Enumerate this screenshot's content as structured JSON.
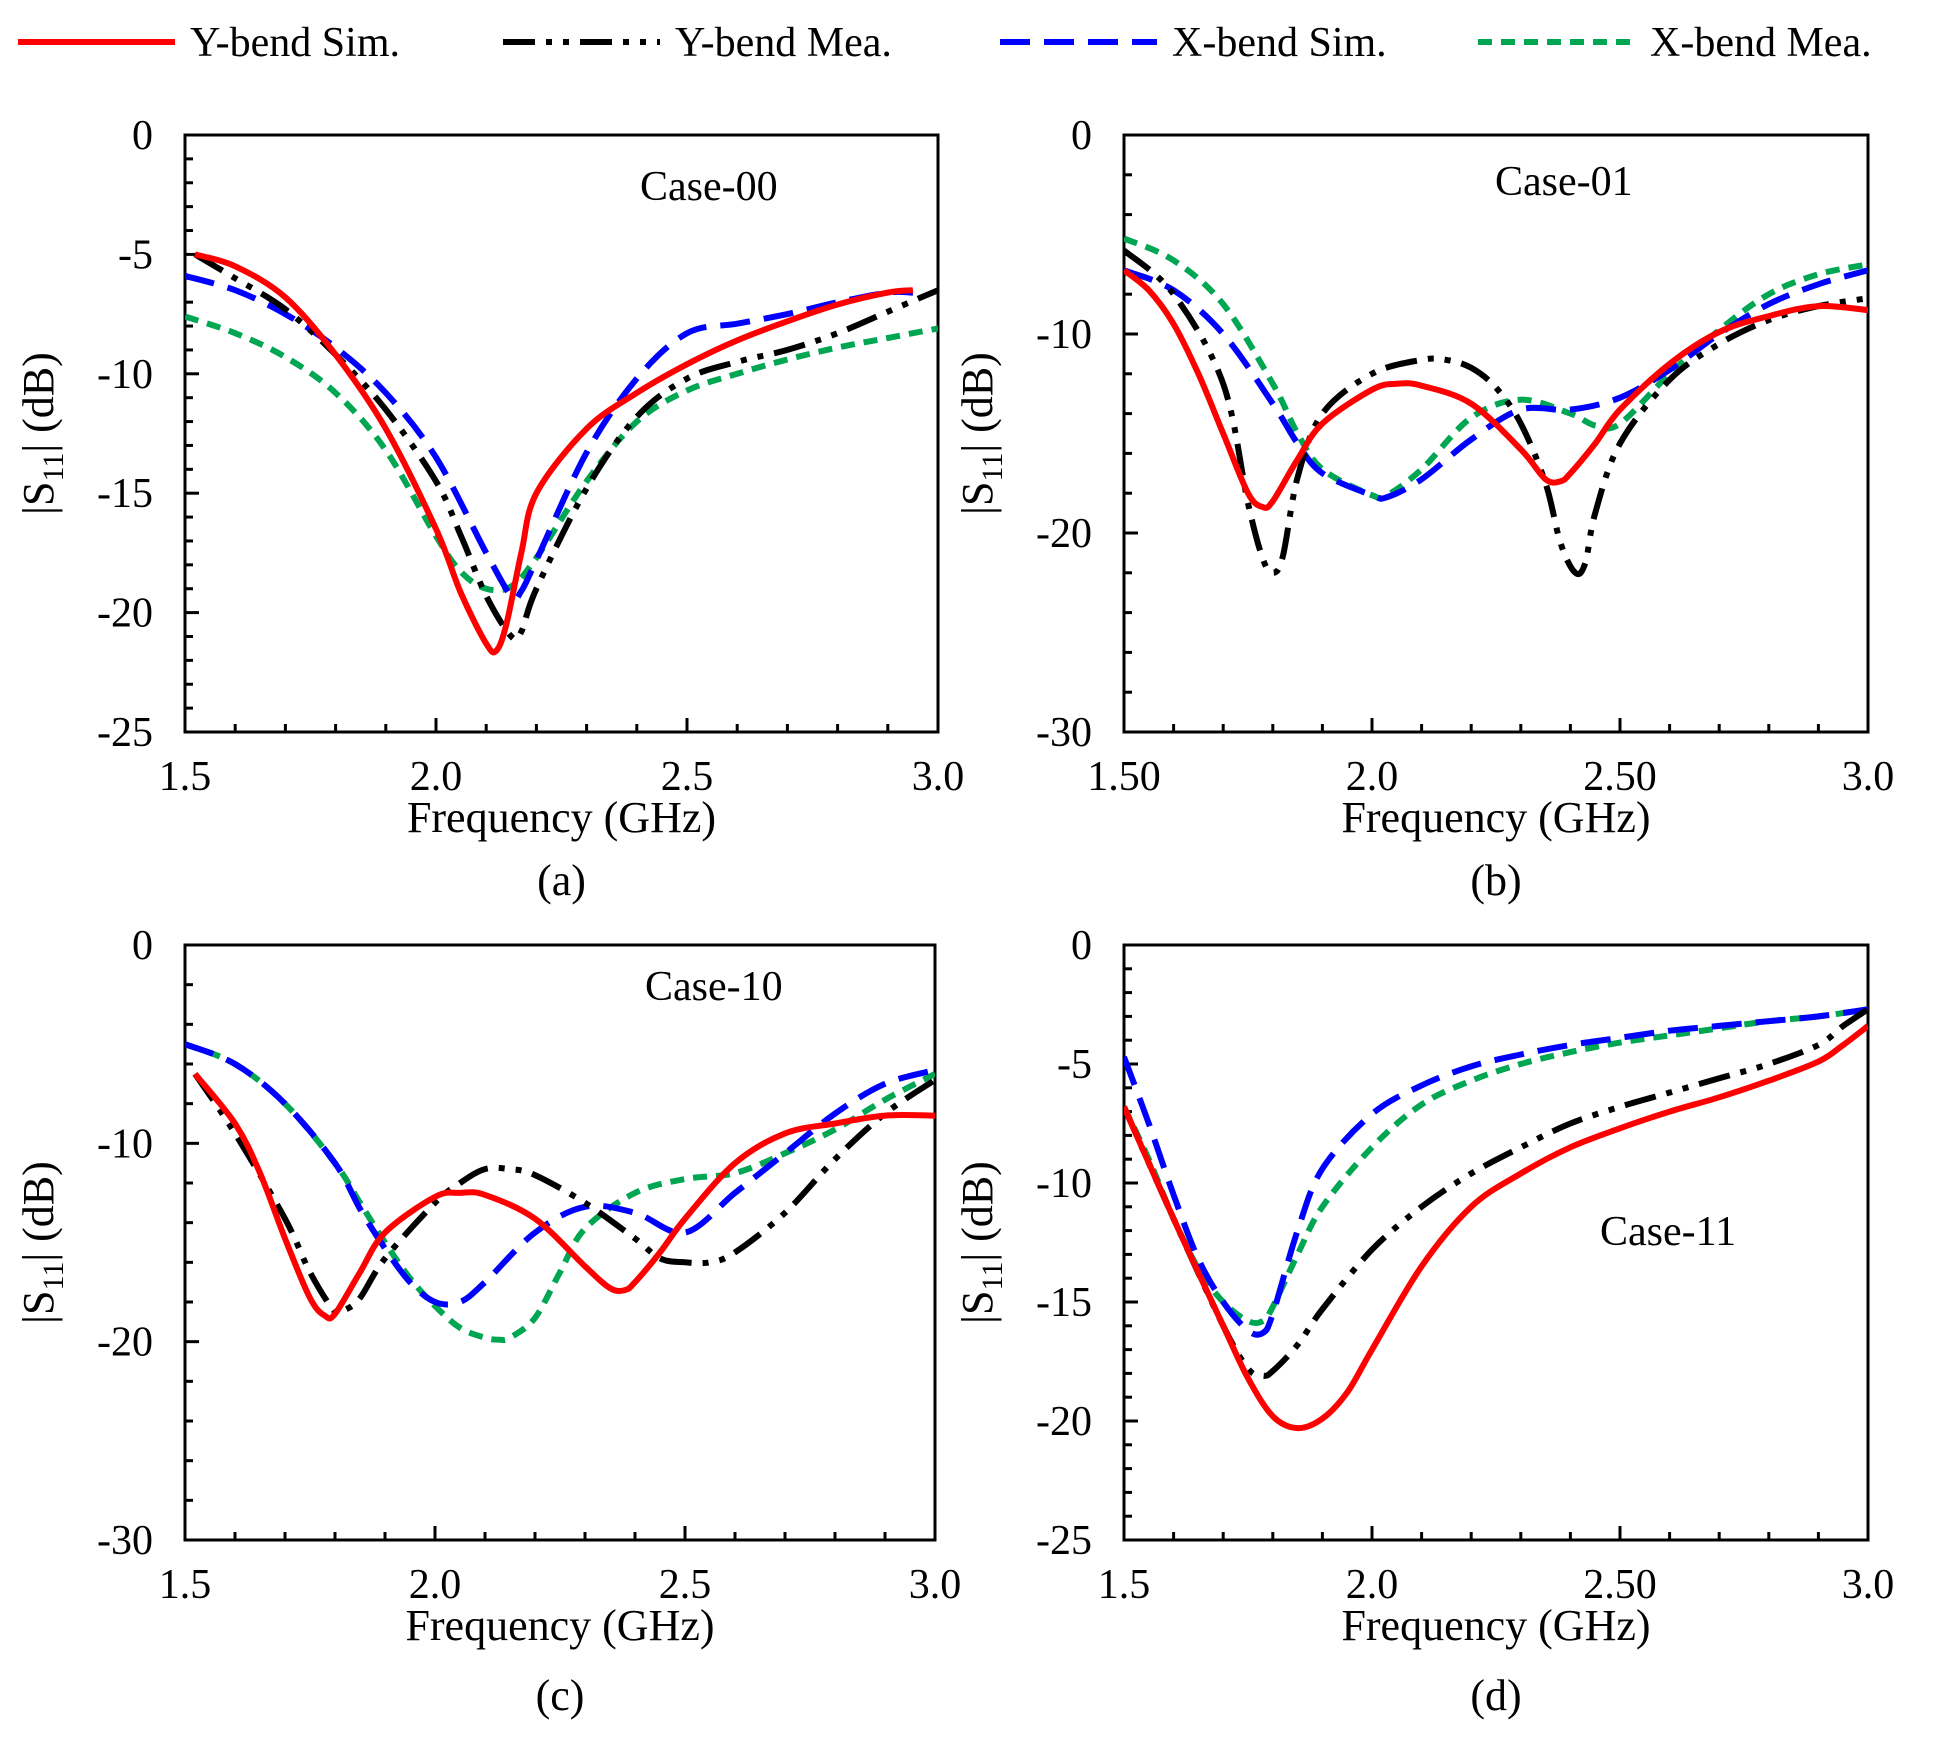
{
  "legend": [
    {
      "name": "Y-bend Sim.",
      "color": "#ff0000",
      "dash": "solid"
    },
    {
      "name": "Y-bend Mea.",
      "color": "#000000",
      "dash": "dashdotdot"
    },
    {
      "name": "X-bend Sim.",
      "color": "#0000ff",
      "dash": "dash"
    },
    {
      "name": "X-bend Mea.",
      "color": "#00a651",
      "dash": "dot"
    }
  ],
  "chart_data": [
    {
      "type": "line",
      "panel": "(a)",
      "annotation": "Case-00",
      "xlabel": "Frequency (GHz)",
      "ylabel": "|S11| (dB)",
      "xlim": [
        1.5,
        3.0
      ],
      "ylim": [
        -25,
        0
      ],
      "xticks": [
        1.5,
        2.0,
        2.5,
        3.0
      ],
      "xtick_labels": [
        "1.5",
        "2.0",
        "2.5",
        "3.0"
      ],
      "yticks": [
        0,
        -5,
        -10,
        -15,
        -20,
        -25
      ],
      "ytick_labels": [
        "0",
        "-5",
        "-10",
        "-15",
        "-20",
        "-25"
      ],
      "series": [
        {
          "name": "Y-bend Sim.",
          "x": [
            1.52,
            1.6,
            1.7,
            1.8,
            1.9,
            2.0,
            2.05,
            2.1,
            2.12,
            2.14,
            2.17,
            2.2,
            2.3,
            2.4,
            2.5,
            2.6,
            2.7,
            2.8,
            2.9,
            2.95
          ],
          "y": [
            -5.0,
            -5.5,
            -6.8,
            -9.2,
            -12.3,
            -16.5,
            -19.2,
            -21.3,
            -21.6,
            -20.5,
            -17.5,
            -15.0,
            -12.3,
            -10.8,
            -9.6,
            -8.6,
            -7.8,
            -7.1,
            -6.6,
            -6.5
          ]
        },
        {
          "name": "Y-bend Mea.",
          "x": [
            1.52,
            1.6,
            1.7,
            1.8,
            1.9,
            2.0,
            2.05,
            2.1,
            2.15,
            2.17,
            2.2,
            2.3,
            2.4,
            2.5,
            2.6,
            2.7,
            2.8,
            2.9,
            3.0
          ],
          "y": [
            -5.0,
            -6.0,
            -7.3,
            -9.2,
            -11.5,
            -14.5,
            -16.8,
            -19.3,
            -21.0,
            -20.8,
            -19.0,
            -14.8,
            -11.8,
            -10.2,
            -9.5,
            -9.0,
            -8.3,
            -7.4,
            -6.5
          ]
        },
        {
          "name": "X-bend Sim.",
          "x": [
            1.5,
            1.6,
            1.7,
            1.8,
            1.9,
            2.0,
            2.1,
            2.15,
            2.17,
            2.2,
            2.3,
            2.4,
            2.5,
            2.6,
            2.7,
            2.8,
            2.9,
            2.95
          ],
          "y": [
            -5.9,
            -6.5,
            -7.5,
            -8.9,
            -10.8,
            -13.5,
            -17.5,
            -19.3,
            -19.1,
            -17.8,
            -13.3,
            -10.2,
            -8.3,
            -7.9,
            -7.5,
            -7.0,
            -6.6,
            -6.6
          ]
        },
        {
          "name": "X-bend Mea.",
          "x": [
            1.5,
            1.6,
            1.7,
            1.8,
            1.9,
            2.0,
            2.05,
            2.1,
            2.15,
            2.2,
            2.3,
            2.4,
            2.5,
            2.6,
            2.7,
            2.8,
            2.9,
            3.0
          ],
          "y": [
            -7.6,
            -8.3,
            -9.3,
            -10.8,
            -13.2,
            -16.8,
            -18.3,
            -19.0,
            -18.9,
            -17.7,
            -14.5,
            -12.0,
            -10.7,
            -10.0,
            -9.4,
            -8.9,
            -8.5,
            -8.1
          ]
        }
      ]
    },
    {
      "type": "line",
      "panel": "(b)",
      "annotation": "Case-01",
      "xlabel": "Frequency (GHz)",
      "ylabel": "|S11| (dB)",
      "xlim": [
        1.5,
        3.0
      ],
      "ylim": [
        -30,
        0
      ],
      "xticks": [
        1.5,
        2.0,
        2.5,
        3.0
      ],
      "xtick_labels": [
        "1.50",
        "2.0",
        "2.50",
        "3.0"
      ],
      "yticks": [
        0,
        -10,
        -20,
        -30
      ],
      "ytick_labels": [
        "0",
        "-10",
        "-20",
        "-30"
      ],
      "series": [
        {
          "name": "Y-bend Sim.",
          "x": [
            1.5,
            1.55,
            1.6,
            1.65,
            1.7,
            1.75,
            1.78,
            1.8,
            1.85,
            1.9,
            2.0,
            2.05,
            2.1,
            2.2,
            2.3,
            2.35,
            2.38,
            2.4,
            2.45,
            2.5,
            2.6,
            2.7,
            2.8,
            2.9,
            3.0
          ],
          "y": [
            -6.8,
            -7.8,
            -9.5,
            -12.0,
            -15.0,
            -18.0,
            -18.7,
            -18.4,
            -16.3,
            -14.5,
            -12.8,
            -12.5,
            -12.6,
            -13.5,
            -15.8,
            -17.3,
            -17.4,
            -17.0,
            -15.5,
            -13.8,
            -11.5,
            -9.9,
            -9.1,
            -8.6,
            -8.8
          ]
        },
        {
          "name": "Y-bend Mea.",
          "x": [
            1.5,
            1.6,
            1.7,
            1.75,
            1.78,
            1.8,
            1.82,
            1.85,
            1.9,
            2.0,
            2.1,
            2.15,
            2.2,
            2.25,
            2.3,
            2.35,
            2.38,
            2.41,
            2.43,
            2.45,
            2.5,
            2.6,
            2.7,
            2.8,
            2.9,
            3.0
          ],
          "y": [
            -5.8,
            -8.0,
            -12.5,
            -18.5,
            -21.3,
            -22.0,
            -21.2,
            -17.2,
            -14.0,
            -12.0,
            -11.3,
            -11.3,
            -11.7,
            -12.7,
            -14.5,
            -17.5,
            -20.5,
            -22.0,
            -21.5,
            -19.0,
            -15.5,
            -12.3,
            -10.5,
            -9.3,
            -8.6,
            -8.2
          ]
        },
        {
          "name": "X-bend Sim.",
          "x": [
            1.5,
            1.6,
            1.7,
            1.8,
            1.85,
            1.9,
            2.0,
            2.03,
            2.1,
            2.2,
            2.3,
            2.4,
            2.5,
            2.6,
            2.7,
            2.8,
            2.9,
            3.0
          ],
          "y": [
            -6.8,
            -7.8,
            -10.0,
            -13.5,
            -15.5,
            -17.0,
            -18.1,
            -18.2,
            -17.3,
            -15.3,
            -13.8,
            -13.8,
            -13.2,
            -11.8,
            -10.0,
            -8.5,
            -7.5,
            -6.8
          ]
        },
        {
          "name": "X-bend Mea.",
          "x": [
            1.5,
            1.6,
            1.7,
            1.8,
            1.85,
            1.9,
            2.0,
            2.03,
            2.1,
            2.2,
            2.3,
            2.4,
            2.45,
            2.5,
            2.6,
            2.7,
            2.8,
            2.9,
            3.0
          ],
          "y": [
            -5.2,
            -6.3,
            -8.5,
            -12.5,
            -15.0,
            -16.8,
            -18.1,
            -18.1,
            -16.8,
            -14.2,
            -13.3,
            -14.0,
            -14.6,
            -14.5,
            -12.0,
            -9.8,
            -8.0,
            -7.0,
            -6.5
          ]
        }
      ]
    },
    {
      "type": "line",
      "panel": "(c)",
      "annotation": "Case-10",
      "xlabel": "Frequency (GHz)",
      "ylabel": "|S11| (dB)",
      "xlim": [
        1.5,
        3.0
      ],
      "ylim": [
        -30,
        0
      ],
      "xticks": [
        1.5,
        2.0,
        2.5,
        3.0
      ],
      "xtick_labels": [
        "1.5",
        "2.0",
        "2.5",
        "3.0"
      ],
      "yticks": [
        0,
        -10,
        -20,
        -30
      ],
      "ytick_labels": [
        "0",
        "-10",
        "-20",
        "-30"
      ],
      "series": [
        {
          "name": "Y-bend Sim.",
          "x": [
            1.52,
            1.6,
            1.65,
            1.7,
            1.75,
            1.78,
            1.8,
            1.85,
            1.9,
            2.0,
            2.05,
            2.1,
            2.2,
            2.3,
            2.35,
            2.38,
            2.4,
            2.45,
            2.5,
            2.6,
            2.7,
            2.8,
            2.9,
            3.0
          ],
          "y": [
            -6.5,
            -9.0,
            -11.5,
            -14.8,
            -17.8,
            -18.7,
            -18.6,
            -16.5,
            -14.5,
            -12.7,
            -12.5,
            -12.6,
            -13.8,
            -16.2,
            -17.3,
            -17.4,
            -17.0,
            -15.5,
            -13.8,
            -11.0,
            -9.5,
            -9.0,
            -8.6,
            -8.6
          ]
        },
        {
          "name": "Y-bend Mea.",
          "x": [
            1.52,
            1.6,
            1.7,
            1.75,
            1.8,
            1.82,
            1.85,
            1.9,
            2.0,
            2.05,
            2.1,
            2.15,
            2.2,
            2.3,
            2.4,
            2.45,
            2.5,
            2.55,
            2.6,
            2.7,
            2.8,
            2.9,
            3.0
          ],
          "y": [
            -6.5,
            -9.5,
            -13.8,
            -16.5,
            -18.5,
            -18.4,
            -17.8,
            -15.8,
            -13.0,
            -12.0,
            -11.3,
            -11.3,
            -11.6,
            -13.0,
            -14.8,
            -15.8,
            -16.0,
            -16.0,
            -15.5,
            -13.5,
            -10.8,
            -8.5,
            -6.8
          ]
        },
        {
          "name": "X-bend Sim.",
          "x": [
            1.5,
            1.6,
            1.7,
            1.8,
            1.85,
            1.9,
            1.95,
            2.0,
            2.05,
            2.1,
            2.2,
            2.3,
            2.4,
            2.5,
            2.6,
            2.7,
            2.8,
            2.9,
            3.0
          ],
          "y": [
            -5.0,
            -6.0,
            -8.0,
            -11.0,
            -13.3,
            -15.3,
            -17.0,
            -18.0,
            -18.0,
            -17.0,
            -14.5,
            -13.2,
            -13.5,
            -14.5,
            -12.5,
            -10.5,
            -8.5,
            -7.0,
            -6.3
          ]
        },
        {
          "name": "X-bend Mea.",
          "x": [
            1.5,
            1.6,
            1.7,
            1.8,
            1.85,
            1.9,
            1.95,
            2.0,
            2.05,
            2.1,
            2.13,
            2.15,
            2.2,
            2.25,
            2.3,
            2.4,
            2.5,
            2.6,
            2.7,
            2.8,
            2.9,
            3.0
          ],
          "y": [
            -5.0,
            -6.0,
            -8.0,
            -11.0,
            -13.0,
            -15.0,
            -16.8,
            -18.2,
            -19.3,
            -19.8,
            -19.9,
            -19.8,
            -18.8,
            -16.5,
            -14.3,
            -12.5,
            -11.8,
            -11.5,
            -10.5,
            -9.3,
            -7.8,
            -6.5
          ]
        }
      ]
    },
    {
      "type": "line",
      "panel": "(d)",
      "annotation": "Case-11",
      "xlabel": "Frequency (GHz)",
      "ylabel": "|S11| (dB)",
      "xlim": [
        1.5,
        3.0
      ],
      "ylim": [
        -25,
        0
      ],
      "xticks": [
        1.5,
        2.0,
        2.5,
        3.0
      ],
      "xtick_labels": [
        "1.5",
        "2.0",
        "2.50",
        "3.0"
      ],
      "yticks": [
        0,
        -5,
        -10,
        -15,
        -20,
        -25
      ],
      "ytick_labels": [
        "0",
        "-5",
        "-10",
        "-15",
        "-20",
        "-25"
      ],
      "series": [
        {
          "name": "Y-bend Sim.",
          "x": [
            1.5,
            1.6,
            1.7,
            1.75,
            1.8,
            1.85,
            1.9,
            1.95,
            2.0,
            2.1,
            2.2,
            2.3,
            2.4,
            2.5,
            2.6,
            2.7,
            2.8,
            2.9,
            2.95,
            3.0
          ],
          "y": [
            -6.8,
            -11.5,
            -16.0,
            -18.2,
            -19.8,
            -20.3,
            -19.9,
            -18.8,
            -17.0,
            -13.5,
            -11.0,
            -9.6,
            -8.5,
            -7.7,
            -7.0,
            -6.4,
            -5.7,
            -4.9,
            -4.2,
            -3.4
          ]
        },
        {
          "name": "Y-bend Mea.",
          "x": [
            1.5,
            1.6,
            1.7,
            1.75,
            1.78,
            1.8,
            1.85,
            1.9,
            2.0,
            2.1,
            2.2,
            2.3,
            2.4,
            2.5,
            2.6,
            2.7,
            2.8,
            2.9,
            2.95,
            3.0
          ],
          "y": [
            -6.8,
            -11.5,
            -16.0,
            -17.8,
            -18.1,
            -17.9,
            -16.8,
            -15.3,
            -12.8,
            -11.0,
            -9.6,
            -8.5,
            -7.5,
            -6.8,
            -6.2,
            -5.6,
            -5.0,
            -4.2,
            -3.4,
            -2.7
          ]
        },
        {
          "name": "X-bend Sim.",
          "x": [
            1.5,
            1.55,
            1.6,
            1.65,
            1.7,
            1.75,
            1.78,
            1.8,
            1.85,
            1.9,
            2.0,
            2.1,
            2.2,
            2.3,
            2.4,
            2.5,
            2.6,
            2.7,
            2.8,
            2.9,
            3.0
          ],
          "y": [
            -4.7,
            -7.5,
            -10.5,
            -13.2,
            -15.0,
            -16.2,
            -16.3,
            -15.5,
            -12.0,
            -9.4,
            -7.1,
            -5.9,
            -5.1,
            -4.6,
            -4.2,
            -3.9,
            -3.6,
            -3.4,
            -3.2,
            -3.0,
            -2.7
          ]
        },
        {
          "name": "X-bend Mea.",
          "x": [
            1.5,
            1.55,
            1.6,
            1.65,
            1.7,
            1.75,
            1.78,
            1.8,
            1.85,
            1.9,
            2.0,
            2.1,
            2.2,
            2.3,
            2.4,
            2.5,
            2.6,
            2.7,
            2.8,
            2.9,
            3.0
          ],
          "y": [
            -6.8,
            -9.0,
            -11.5,
            -13.6,
            -15.0,
            -15.8,
            -15.8,
            -15.2,
            -13.0,
            -11.0,
            -8.5,
            -6.7,
            -5.7,
            -5.0,
            -4.5,
            -4.1,
            -3.8,
            -3.5,
            -3.2,
            -3.0,
            -2.7
          ]
        }
      ]
    }
  ]
}
